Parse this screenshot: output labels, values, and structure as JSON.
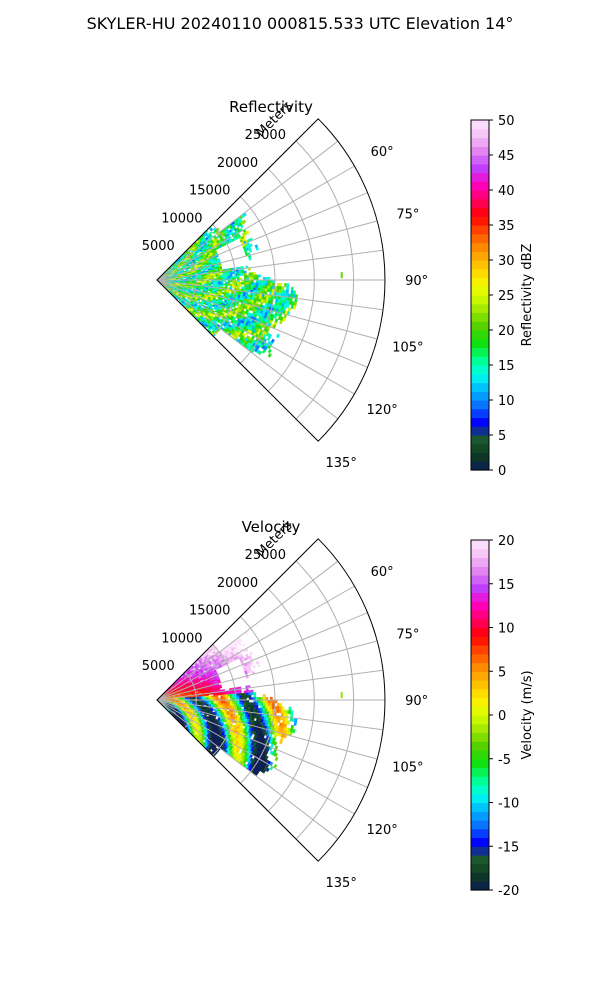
{
  "figure": {
    "title": "SKYLER-HU  20240110  000815.533 UTC Elevation 14°"
  },
  "chart_data": [
    {
      "type": "polar-sector-ppi",
      "title": "Reflectivity",
      "radial_label": "Meters",
      "angle_range_deg": [
        45,
        135
      ],
      "radius_max_m": 29000,
      "r_ticks": [
        5000,
        10000,
        15000,
        20000,
        25000
      ],
      "angle_ticks": [
        60,
        75,
        90,
        105,
        120,
        135
      ],
      "data_extent_m": 15000,
      "grid": true,
      "colorbar": {
        "label": "Reflectivity dBZ",
        "range": [
          0,
          50
        ],
        "ticks": [
          0,
          5,
          10,
          15,
          20,
          25,
          30,
          35,
          40,
          45,
          50
        ],
        "scale": [
          "#0b1c55",
          "#0e3b20",
          "#1c5a2e",
          "#0000ff",
          "#0a6cff",
          "#00b4ff",
          "#00ffee",
          "#00ff88",
          "#10e010",
          "#4fd000",
          "#9ae600",
          "#d8ff00",
          "#ffee00",
          "#ffbe00",
          "#ff8c00",
          "#ff4a00",
          "#ff0000",
          "#ff0066",
          "#ff00c0",
          "#c040ff",
          "#e080f0",
          "#f4c0f4",
          "#ffe6ff"
        ]
      },
      "field": "reflectivity"
    },
    {
      "type": "polar-sector-ppi",
      "title": "Velocity",
      "radial_label": "Meters",
      "angle_range_deg": [
        45,
        135
      ],
      "radius_max_m": 29000,
      "r_ticks": [
        5000,
        10000,
        15000,
        20000,
        25000
      ],
      "angle_ticks": [
        60,
        75,
        90,
        105,
        120,
        135
      ],
      "data_extent_m": 15000,
      "grid": true,
      "colorbar": {
        "label": "Velocity (m/s)",
        "range": [
          -20,
          20
        ],
        "ticks": [
          -20,
          -15,
          -10,
          -5,
          0,
          5,
          10,
          15,
          20
        ],
        "scale": [
          "#0b1c55",
          "#0e3b20",
          "#1c5a2e",
          "#0000ff",
          "#0a6cff",
          "#00b4ff",
          "#00ffee",
          "#00ff88",
          "#10e010",
          "#4fd000",
          "#9ae600",
          "#d8ff00",
          "#ffee00",
          "#ffbe00",
          "#ff8c00",
          "#ff4a00",
          "#ff0000",
          "#ff0066",
          "#ff00c0",
          "#c040ff",
          "#e080f0",
          "#f4c0f4",
          "#ffe6ff"
        ]
      },
      "field": "velocity"
    }
  ]
}
